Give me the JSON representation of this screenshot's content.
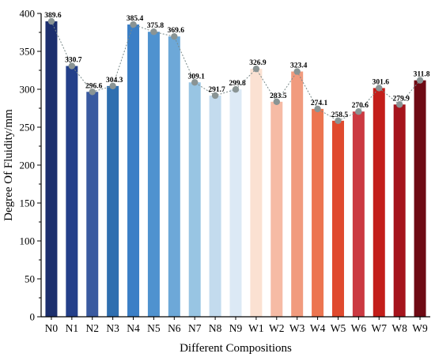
{
  "chart_data": {
    "type": "bar",
    "xlabel": "Different Compositions",
    "ylabel": "Degree Of  Fluidity/mm",
    "ylim": [
      0,
      400
    ],
    "yticks": [
      0,
      50,
      100,
      150,
      200,
      250,
      300,
      350,
      400
    ],
    "categories": [
      "N0",
      "N1",
      "N2",
      "N3",
      "N4",
      "N5",
      "N6",
      "N7",
      "N8",
      "N9",
      "W1",
      "W2",
      "W3",
      "W4",
      "W5",
      "W6",
      "W7",
      "W8",
      "W9"
    ],
    "values": [
      389.6,
      330.7,
      296.6,
      304.3,
      385.4,
      375.8,
      369.6,
      309.1,
      291.7,
      299.8,
      326.9,
      283.5,
      323.4,
      274.1,
      258.5,
      270.6,
      301.6,
      279.9,
      311.8
    ],
    "data_labels": [
      "389.6",
      "330.7",
      "296.6",
      "304.3",
      "385.4",
      "375.8",
      "369.6",
      "309.1",
      "291.7",
      "299.8",
      "326.9",
      "283.5",
      "323.4",
      "274.1",
      "258.5",
      "270.6",
      "301.6",
      "279.9",
      "311.8"
    ],
    "bar_colors": [
      "#1c2f6e",
      "#24408a",
      "#3a5aa0",
      "#2f6fb0",
      "#3b7fc6",
      "#4f92cf",
      "#6da8d8",
      "#98c5e3",
      "#c3dbee",
      "#dce9f5",
      "#fbe1d2",
      "#f6bba5",
      "#f19b7e",
      "#ec7550",
      "#e04a2e",
      "#cb3a42",
      "#c31e1a",
      "#a5141c",
      "#6e0a14"
    ],
    "trend_line": "dotted",
    "markers": true,
    "grid": false,
    "legend": "none"
  }
}
